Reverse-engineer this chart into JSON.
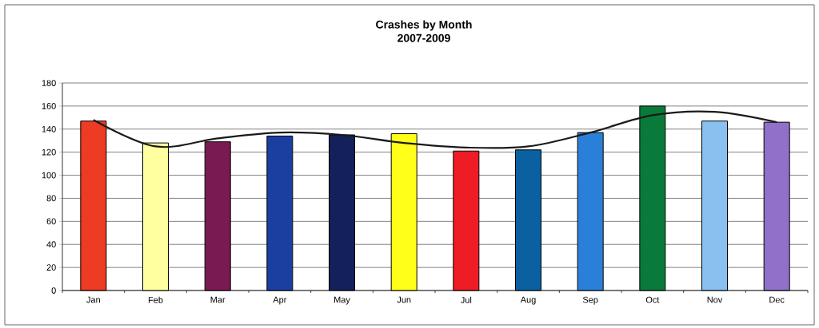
{
  "chart_data": {
    "type": "bar",
    "title": "Crashes by Month",
    "subtitle": "2007-2009",
    "categories": [
      "Jan",
      "Feb",
      "Mar",
      "Apr",
      "May",
      "Jun",
      "Jul",
      "Aug",
      "Sep",
      "Oct",
      "Nov",
      "Dec"
    ],
    "series": [
      {
        "type": "bar",
        "colors": [
          "#ee3b24",
          "#ffffa0",
          "#7a1a52",
          "#1a3fa0",
          "#14205a",
          "#ffff1a",
          "#ee1c24",
          "#0a60a0",
          "#2a80d8",
          "#0a7a3a",
          "#88c0f0",
          "#9070c8"
        ],
        "values": [
          147,
          128,
          129,
          134,
          135,
          136,
          121,
          122,
          137,
          160,
          147,
          146
        ]
      },
      {
        "type": "line",
        "color": "#1a1a1a",
        "values": [
          148,
          125,
          132,
          137,
          135,
          128,
          124,
          125,
          137,
          152,
          155,
          146
        ]
      }
    ],
    "ylim": [
      0,
      180
    ],
    "yticks": [
      0,
      20,
      40,
      60,
      80,
      100,
      120,
      140,
      160,
      180
    ],
    "grid": "y"
  }
}
